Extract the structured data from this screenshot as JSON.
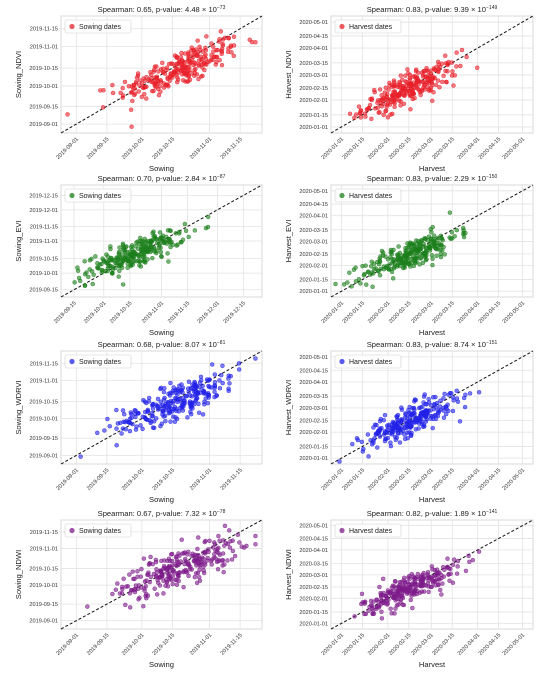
{
  "chart_data": [
    {
      "type": "scatter",
      "title": "Spearman: 0.65, p-value: 4.48 × 10",
      "title_exp": "−73",
      "xlabel": "Sowing",
      "ylabel": "Sowing_NDVI",
      "legend": "Sowing dates",
      "legend_position": "top-left",
      "color": "#e8202a",
      "grid": true,
      "x_ticks": [
        "2019-09-01",
        "2019-09-15",
        "2019-10-01",
        "2019-10-15",
        "2019-11-01",
        "2019-11-15"
      ],
      "y_ticks": [
        "2019-09-01",
        "2019-09-15",
        "2019-10-01",
        "2019-10-15",
        "2019-11-01",
        "2019-11-15"
      ],
      "xlim": [
        "2019-08-25",
        "2019-11-25"
      ],
      "ylim": [
        "2019-08-25",
        "2019-11-25"
      ],
      "identity_line": true,
      "cloud": {
        "x_center": "2019-10-18",
        "y_center": "2019-10-14",
        "x_spread_days": 14,
        "y_spread_days": 12,
        "n": 260
      }
    },
    {
      "type": "scatter",
      "title": "Spearman: 0.83, p-value: 9.39 × 10",
      "title_exp": "−149",
      "xlabel": "Harvest",
      "ylabel": "Harvest_NDVI",
      "legend": "Harvest dates",
      "legend_position": "top-left",
      "color": "#e8202a",
      "grid": true,
      "x_ticks": [
        "2020-01-01",
        "2020-01-15",
        "2020-02-01",
        "2020-02-15",
        "2020-03-01",
        "2020-03-15",
        "2020-04-01",
        "2020-04-15",
        "2020-05-01"
      ],
      "y_ticks": [
        "2020-01-01",
        "2020-01-15",
        "2020-02-01",
        "2020-02-15",
        "2020-03-01",
        "2020-03-15",
        "2020-04-01",
        "2020-04-15",
        "2020-05-01"
      ],
      "xlim": [
        "2019-12-25",
        "2020-05-08"
      ],
      "ylim": [
        "2019-12-25",
        "2020-05-08"
      ],
      "identity_line": true,
      "cloud": {
        "x_center": "2020-02-16",
        "y_center": "2020-02-15",
        "x_spread_days": 16,
        "y_spread_days": 15,
        "n": 260
      }
    },
    {
      "type": "scatter",
      "title": "Spearman: 0.70, p-value: 2.84 × 10",
      "title_exp": "−87",
      "xlabel": "Sowing",
      "ylabel": "Sowing_EVI",
      "legend": "Sowing dates",
      "legend_position": "top-left",
      "color": "#1a7f1a",
      "grid": true,
      "x_ticks": [
        "2019-09-15",
        "2019-10-01",
        "2019-10-15",
        "2019-11-01",
        "2019-11-15",
        "2019-12-01",
        "2019-12-15"
      ],
      "y_ticks": [
        "2019-09-15",
        "2019-10-01",
        "2019-10-15",
        "2019-11-01",
        "2019-11-15",
        "2019-12-01",
        "2019-12-15"
      ],
      "xlim": [
        "2019-09-08",
        "2019-12-25"
      ],
      "ylim": [
        "2019-09-08",
        "2019-12-25"
      ],
      "identity_line": true,
      "cloud": {
        "x_center": "2019-10-18",
        "y_center": "2019-10-20",
        "x_spread_days": 13,
        "y_spread_days": 11,
        "n": 260
      }
    },
    {
      "type": "scatter",
      "title": "Spearman: 0.83, p-value: 2.29 × 10",
      "title_exp": "−150",
      "xlabel": "Harvest",
      "ylabel": "Harvest_EVI",
      "legend": "Harvest dates",
      "legend_position": "top-left",
      "color": "#1a7f1a",
      "grid": true,
      "x_ticks": [
        "2020-01-01",
        "2020-01-15",
        "2020-02-01",
        "2020-02-15",
        "2020-03-01",
        "2020-03-15",
        "2020-04-01",
        "2020-04-15",
        "2020-05-01"
      ],
      "y_ticks": [
        "2020-01-01",
        "2020-01-15",
        "2020-02-01",
        "2020-02-15",
        "2020-03-01",
        "2020-03-15",
        "2020-04-01",
        "2020-04-15",
        "2020-05-01"
      ],
      "xlim": [
        "2019-12-25",
        "2020-05-08"
      ],
      "ylim": [
        "2019-12-25",
        "2020-05-08"
      ],
      "identity_line": true,
      "cloud": {
        "x_center": "2020-02-16",
        "y_center": "2020-02-14",
        "x_spread_days": 16,
        "y_spread_days": 15,
        "n": 260
      }
    },
    {
      "type": "scatter",
      "title": "Spearman: 0.68, p-value: 8.07 × 10",
      "title_exp": "−81",
      "xlabel": "Sowing",
      "ylabel": "Sowing_WDRVI",
      "legend": "Sowing dates",
      "legend_position": "top-left",
      "color": "#2222e8",
      "grid": true,
      "x_ticks": [
        "2019-09-01",
        "2019-09-15",
        "2019-10-01",
        "2019-10-15",
        "2019-11-01",
        "2019-11-15"
      ],
      "y_ticks": [
        "2019-09-01",
        "2019-09-15",
        "2019-10-01",
        "2019-10-15",
        "2019-11-01",
        "2019-11-15"
      ],
      "xlim": [
        "2019-08-25",
        "2019-11-25"
      ],
      "ylim": [
        "2019-08-25",
        "2019-11-25"
      ],
      "identity_line": true,
      "cloud": {
        "x_center": "2019-10-18",
        "y_center": "2019-10-16",
        "x_spread_days": 14,
        "y_spread_days": 12,
        "n": 260
      }
    },
    {
      "type": "scatter",
      "title": "Spearman: 0.83, p-value: 8.74 × 10",
      "title_exp": "−151",
      "xlabel": "Harvest",
      "ylabel": "Harvest_WDRVI",
      "legend": "Harvest dates",
      "legend_position": "top-left",
      "color": "#2222e8",
      "grid": true,
      "x_ticks": [
        "2020-01-01",
        "2020-01-15",
        "2020-02-01",
        "2020-02-15",
        "2020-03-01",
        "2020-03-15",
        "2020-04-01",
        "2020-04-15",
        "2020-05-01"
      ],
      "y_ticks": [
        "2020-01-01",
        "2020-01-15",
        "2020-02-01",
        "2020-02-15",
        "2020-03-01",
        "2020-03-15",
        "2020-04-01",
        "2020-04-15",
        "2020-05-01"
      ],
      "xlim": [
        "2019-12-25",
        "2020-05-08"
      ],
      "ylim": [
        "2019-12-25",
        "2020-05-08"
      ],
      "identity_line": true,
      "cloud": {
        "x_center": "2020-02-16",
        "y_center": "2020-02-15",
        "x_spread_days": 16,
        "y_spread_days": 15,
        "n": 260
      }
    },
    {
      "type": "scatter",
      "title": "Spearman: 0.67, p-value: 7.32 × 10",
      "title_exp": "−78",
      "xlabel": "Sowing",
      "ylabel": "Sowing_NDWI",
      "legend": "Sowing dates",
      "legend_position": "top-left",
      "color": "#7d1a8a",
      "grid": true,
      "x_ticks": [
        "2019-09-01",
        "2019-09-15",
        "2019-10-01",
        "2019-10-15",
        "2019-11-01",
        "2019-11-15"
      ],
      "y_ticks": [
        "2019-09-01",
        "2019-09-15",
        "2019-10-01",
        "2019-10-15",
        "2019-11-01",
        "2019-11-15"
      ],
      "xlim": [
        "2019-08-25",
        "2019-11-25"
      ],
      "ylim": [
        "2019-08-25",
        "2019-11-25"
      ],
      "identity_line": true,
      "cloud": {
        "x_center": "2019-10-18",
        "y_center": "2019-10-16",
        "x_spread_days": 14,
        "y_spread_days": 13,
        "n": 260
      }
    },
    {
      "type": "scatter",
      "title": "Spearman: 0.82, p-value: 1.89 × 10",
      "title_exp": "−141",
      "xlabel": "Harvest",
      "ylabel": "Harvest_NDWI",
      "legend": "Harvest dates",
      "legend_position": "top-left",
      "color": "#7d1a8a",
      "grid": true,
      "x_ticks": [
        "2020-01-01",
        "2020-01-15",
        "2020-02-01",
        "2020-02-15",
        "2020-03-01",
        "2020-03-15",
        "2020-04-01",
        "2020-04-15",
        "2020-05-01"
      ],
      "y_ticks": [
        "2020-01-01",
        "2020-01-15",
        "2020-02-01",
        "2020-02-15",
        "2020-03-01",
        "2020-03-15",
        "2020-04-01",
        "2020-04-15",
        "2020-05-01"
      ],
      "xlim": [
        "2019-12-25",
        "2020-05-08"
      ],
      "ylim": [
        "2019-12-25",
        "2020-05-08"
      ],
      "identity_line": true,
      "cloud": {
        "x_center": "2020-02-16",
        "y_center": "2020-02-14",
        "x_spread_days": 16,
        "y_spread_days": 15,
        "n": 260
      }
    }
  ]
}
